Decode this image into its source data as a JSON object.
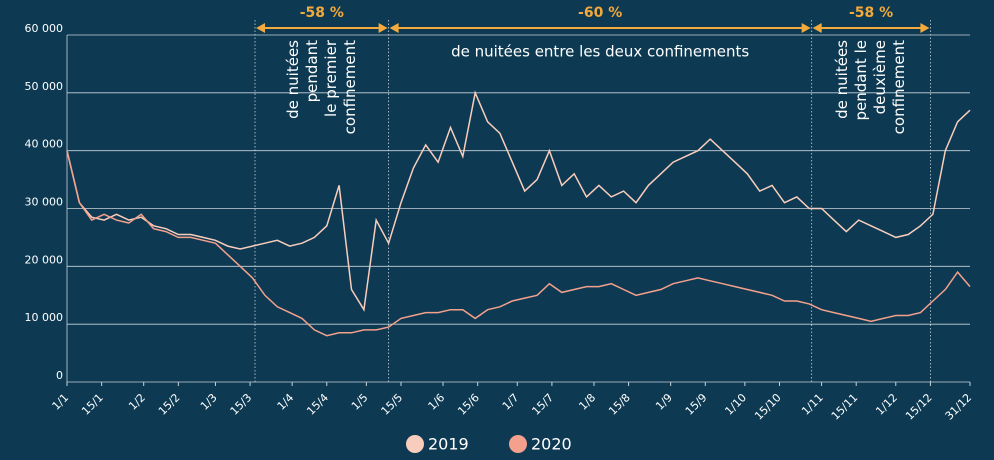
{
  "chart_data": {
    "type": "line",
    "x": [
      1,
      6,
      11,
      16,
      21,
      26,
      31,
      36,
      41,
      46,
      51,
      56,
      61,
      66,
      71,
      76,
      81,
      86,
      91,
      96,
      101,
      106,
      111,
      116,
      121,
      126,
      131,
      136,
      141,
      146,
      151,
      156,
      161,
      166,
      171,
      176,
      181,
      186,
      191,
      196,
      201,
      206,
      211,
      216,
      221,
      226,
      231,
      236,
      241,
      246,
      251,
      256,
      261,
      266,
      271,
      276,
      281,
      286,
      291,
      296,
      301,
      306,
      311,
      316,
      321,
      326,
      331,
      336,
      341,
      346,
      351,
      356,
      361,
      366
    ],
    "series": [
      {
        "name": "2019",
        "color": "#f9cdbd",
        "values": [
          40000,
          31000,
          28500,
          28000,
          29000,
          28000,
          28500,
          27000,
          26500,
          25500,
          25500,
          25000,
          24500,
          23500,
          23000,
          23500,
          24000,
          24500,
          23500,
          24000,
          25000,
          27000,
          34000,
          16000,
          12500,
          28000,
          24000,
          31000,
          37000,
          41000,
          38000,
          44000,
          39000,
          50000,
          45000,
          43000,
          38000,
          33000,
          35000,
          40000,
          34000,
          36000,
          32000,
          34000,
          32000,
          33000,
          31000,
          34000,
          36000,
          38000,
          39000,
          40000,
          42000,
          40000,
          38000,
          36000,
          33000,
          34000,
          31000,
          32000,
          30000,
          30000,
          28000,
          26000,
          28000,
          27000,
          26000,
          25000,
          25500,
          27000,
          29000,
          40000,
          45000,
          47000
        ]
      },
      {
        "name": "2020",
        "color": "#f4a08c",
        "values": [
          40000,
          31000,
          28000,
          29000,
          28000,
          27500,
          29000,
          26500,
          26000,
          25000,
          25000,
          24500,
          24000,
          22000,
          20000,
          18000,
          15000,
          13000,
          12000,
          11000,
          9000,
          8000,
          8500,
          8500,
          9000,
          9000,
          9500,
          11000,
          11500,
          12000,
          12000,
          12500,
          12500,
          11000,
          12500,
          13000,
          14000,
          14500,
          15000,
          17000,
          15500,
          16000,
          16500,
          16500,
          17000,
          16000,
          15000,
          15500,
          16000,
          17000,
          17500,
          18000,
          17500,
          17000,
          16500,
          16000,
          15500,
          15000,
          14000,
          14000,
          13500,
          12500,
          12000,
          11500,
          11000,
          10500,
          11000,
          11500,
          11500,
          12000,
          14000,
          16000,
          19000,
          16500
        ]
      }
    ],
    "xlim": [
      1,
      366
    ],
    "xticks": [
      {
        "value": 1,
        "label": "1/1"
      },
      {
        "value": 15,
        "label": "15/1"
      },
      {
        "value": 32,
        "label": "1/2"
      },
      {
        "value": 46,
        "label": "15/2"
      },
      {
        "value": 61,
        "label": "1/3"
      },
      {
        "value": 75,
        "label": "15/3"
      },
      {
        "value": 92,
        "label": "1/4"
      },
      {
        "value": 106,
        "label": "15/4"
      },
      {
        "value": 122,
        "label": "1/5"
      },
      {
        "value": 136,
        "label": "15/5"
      },
      {
        "value": 153,
        "label": "1/6"
      },
      {
        "value": 167,
        "label": "15/6"
      },
      {
        "value": 183,
        "label": "1/7"
      },
      {
        "value": 197,
        "label": "15/7"
      },
      {
        "value": 214,
        "label": "1/8"
      },
      {
        "value": 228,
        "label": "15/8"
      },
      {
        "value": 245,
        "label": "1/9"
      },
      {
        "value": 259,
        "label": "15/9"
      },
      {
        "value": 275,
        "label": "1/10"
      },
      {
        "value": 289,
        "label": "15/10"
      },
      {
        "value": 306,
        "label": "1/11"
      },
      {
        "value": 320,
        "label": "15/11"
      },
      {
        "value": 336,
        "label": "1/12"
      },
      {
        "value": 350,
        "label": "15/12"
      },
      {
        "value": 366,
        "label": "31/12"
      }
    ],
    "ylim": [
      0,
      60000
    ],
    "yticks": [
      0,
      {
        "value": 10000,
        "label": "10 000"
      },
      {
        "value": 20000,
        "label": "20 000"
      },
      {
        "value": 30000,
        "label": "30 000"
      },
      {
        "value": 40000,
        "label": "40 000"
      },
      {
        "value": 50000,
        "label": "50 000"
      },
      {
        "value": 60000,
        "label": "60 000"
      }
    ],
    "grid": true,
    "annotation_color": "#f3a93b",
    "periods": [
      {
        "start": 77,
        "end": 131,
        "label": "-58 %",
        "orientation": "vertical",
        "text": [
          "de nuitées",
          "pendant",
          "le premier",
          "confinement"
        ]
      },
      {
        "start": 131,
        "end": 302,
        "label": "-60 %",
        "orientation": "horizontal",
        "text": [
          "de nuitées entre les deux confinements"
        ]
      },
      {
        "start": 302,
        "end": 350,
        "label": "-58 %",
        "orientation": "vertical",
        "text": [
          "de nuitées",
          "pendant le",
          "deuxième",
          "confinement"
        ]
      }
    ]
  }
}
